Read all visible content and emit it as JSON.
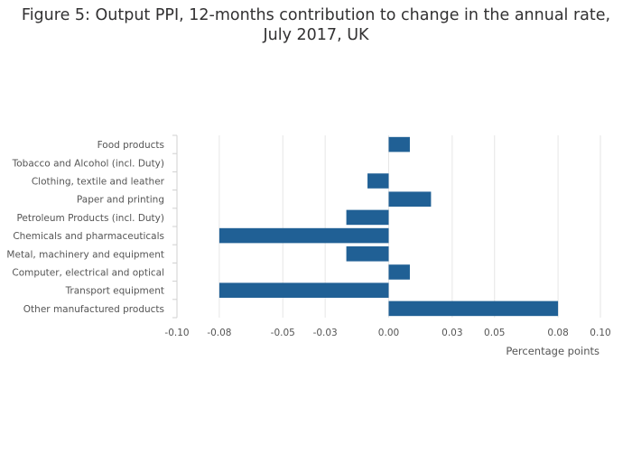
{
  "chart_data": {
    "type": "bar",
    "orientation": "horizontal",
    "title_lines": [
      "Figure 5: Output PPI, 12-months contribution to change in the annual rate,",
      "July 2017, UK"
    ],
    "categories": [
      "Food products",
      "Tobacco and Alcohol (incl. Duty)",
      "Clothing, textile and leather",
      "Paper and printing",
      "Petroleum Products (incl. Duty)",
      "Chemicals and pharmaceuticals",
      "Metal, machinery and equipment",
      "Computer, electrical and optical",
      "Transport equipment",
      "Other manufactured products"
    ],
    "values": [
      0.01,
      0.0,
      -0.01,
      0.02,
      -0.02,
      -0.08,
      -0.02,
      0.01,
      -0.08,
      0.08
    ],
    "xlabel": "Percentage points",
    "xlim": [
      -0.1,
      0.1
    ],
    "xticks": [
      -0.1,
      -0.08,
      -0.05,
      -0.03,
      0.0,
      0.03,
      0.05,
      0.08,
      0.1
    ],
    "xtick_labels": [
      "-0.10",
      "-0.08",
      "-0.05",
      "-0.03",
      "0.00",
      "0.03",
      "0.05",
      "0.08",
      "0.10"
    ],
    "grid": true,
    "bar_color": "#206095"
  }
}
